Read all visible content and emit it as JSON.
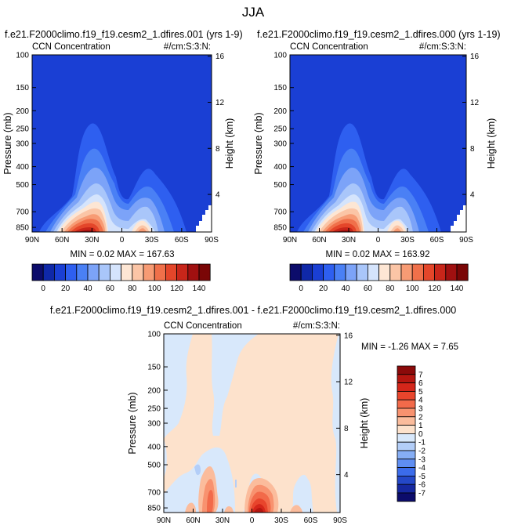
{
  "page_title": "JJA",
  "chart_data": [
    {
      "type": "contour",
      "title": "f.e21.F2000climo.f19_f19.cesm2_1.dfires.001 (yrs 1-9)",
      "left_label": "CCN Concentration",
      "right_label": "#/cm:S:3:N:",
      "ylabel": "Pressure (mb)",
      "ylabel_right": "Height (km)",
      "x_ticks": [
        "90N",
        "60N",
        "30N",
        "0",
        "30S",
        "60S",
        "90S"
      ],
      "y_ticks": [
        "100",
        "150",
        "200",
        "250",
        "300",
        "400",
        "500",
        "700",
        "850"
      ],
      "y_ticks_right": [
        "16",
        "12",
        "8",
        "4"
      ],
      "stats": "MIN = 0.02 MAX = 167.63",
      "min": 0.02,
      "max": 167.63,
      "colorbar": {
        "orientation": "horizontal",
        "tick_labels": [
          "0",
          "20",
          "40",
          "60",
          "80",
          "100",
          "120",
          "140"
        ],
        "colors": [
          "#0c0c6b",
          "#0f28a8",
          "#1a3fd4",
          "#2e5ff0",
          "#4a80f5",
          "#7ca3f8",
          "#a9c6fa",
          "#d5e4fc",
          "#fde6d4",
          "#fbc5a6",
          "#f79b74",
          "#f0704a",
          "#e4462a",
          "#c8261a",
          "#a01010",
          "#7a0606"
        ]
      }
    },
    {
      "type": "contour",
      "title": "f.e21.F2000climo.f19_f19.cesm2_1.dfires.000 (yrs 1-19)",
      "left_label": "CCN Concentration",
      "right_label": "#/cm:S:3:N:",
      "ylabel": "Pressure (mb)",
      "ylabel_right": "Height (km)",
      "x_ticks": [
        "90N",
        "60N",
        "30N",
        "0",
        "30S",
        "60S",
        "90S"
      ],
      "y_ticks": [
        "100",
        "150",
        "200",
        "250",
        "300",
        "400",
        "500",
        "700",
        "850"
      ],
      "y_ticks_right": [
        "16",
        "12",
        "8",
        "4"
      ],
      "stats": "MIN = 0.02 MAX = 163.92",
      "min": 0.02,
      "max": 163.92,
      "colorbar": {
        "orientation": "horizontal",
        "tick_labels": [
          "0",
          "20",
          "40",
          "60",
          "80",
          "100",
          "120",
          "140"
        ]
      }
    },
    {
      "type": "contour",
      "title": "f.e21.F2000climo.f19_f19.cesm2_1.dfires.001 - f.e21.F2000climo.f19_f19.cesm2_1.dfires.000",
      "left_label": "CCN Concentration",
      "right_label": "#/cm:S:3:N:",
      "ylabel": "Pressure (mb)",
      "ylabel_right": "Height (km)",
      "x_ticks": [
        "90N",
        "60N",
        "30N",
        "0",
        "30S",
        "60S",
        "90S"
      ],
      "y_ticks": [
        "100",
        "150",
        "200",
        "250",
        "300",
        "400",
        "500",
        "700",
        "850"
      ],
      "y_ticks_right": [
        "16",
        "12",
        "8",
        "4"
      ],
      "stats": "MIN = -1.26 MAX = 7.65",
      "min": -1.26,
      "max": 7.65,
      "colorbar": {
        "orientation": "vertical",
        "tick_labels": [
          "7",
          "6",
          "5",
          "4",
          "3",
          "2",
          "1",
          "0",
          "-1",
          "-2",
          "-3",
          "-4",
          "-5",
          "-6",
          "-7"
        ],
        "colors": [
          "#8b0a0a",
          "#b51610",
          "#d4261a",
          "#e8452c",
          "#f26a4a",
          "#f8926f",
          "#fbbc9c",
          "#fde2cc",
          "#d8e8fb",
          "#b3cef8",
          "#86aef5",
          "#5f8ef2",
          "#3b6ceb",
          "#2448c8",
          "#1628a0",
          "#0c0c6b"
        ]
      }
    }
  ]
}
